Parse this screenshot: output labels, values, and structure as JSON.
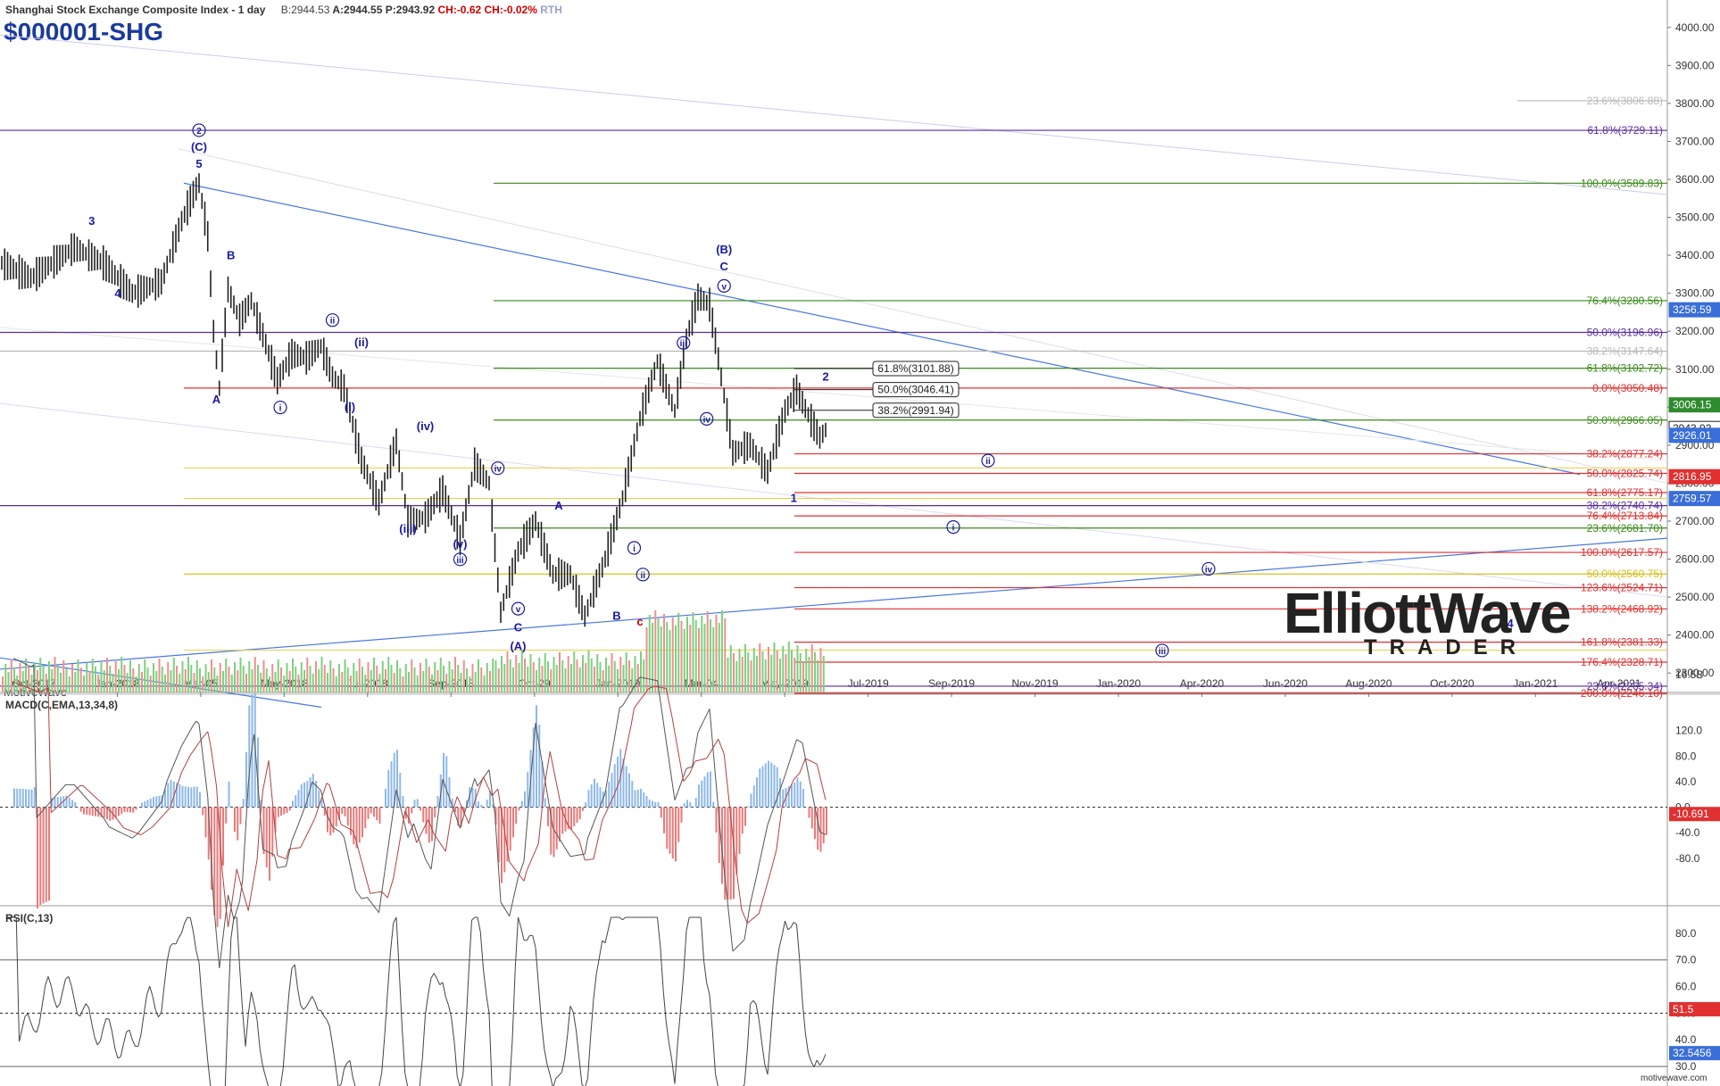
{
  "header": {
    "title": "Shanghai Stock Exchange Composite Index - 1 day",
    "bid": "B:2944.53",
    "ask": "A:2944.55",
    "price": "P:2943.92",
    "change": "CH:-0.62",
    "change_pct": "CH:-0.02%",
    "session": "RTH",
    "symbol": "$000001-SHG"
  },
  "branding": {
    "app": "MotiveWave",
    "footer": "motivewave.com",
    "logo_main": "ElliottWave",
    "logo_sub": "TRADER"
  },
  "colors": {
    "up_bar": "#222222",
    "trend": "#4a78e0",
    "fib_green": "#2e8b2e",
    "fib_red": "#e03030",
    "fib_yellow": "#e8d040",
    "fib_purple": "#4a2a90",
    "wave_label": "#1a1aa0"
  },
  "chart_data": [
    {
      "type": "line",
      "title": "Shanghai Stock Exchange Composite Index - 1 day",
      "price_axis_ticks": [
        "4000.00",
        "3900.00",
        "3800.00",
        "3700.00",
        "3600.00",
        "3500.00",
        "3400.00",
        "3300.00",
        "3200.00",
        "3100.00",
        "3000.00",
        "2900.00",
        "2800.00",
        "2700.00",
        "2600.00",
        "2500.00",
        "2400.00",
        "2300.00"
      ],
      "ylim": [
        2230,
        4030
      ],
      "time_axis_ticks": [
        "Oct-2017",
        "Jan-2018",
        "Mar-05",
        "May-2018",
        "Jul-2018",
        "Sep-2018",
        "Oct-29",
        "Jan-2019",
        "Mar-04",
        "May-2019",
        "Jul-2019",
        "Sep-2019",
        "Nov-2019",
        "Jan-2020",
        "Apr-2020",
        "Jun-2020",
        "Aug-2020",
        "Oct-2020",
        "Jan-2021",
        "Apr-2021"
      ],
      "price_path": [
        [
          0,
          3380
        ],
        [
          10,
          3340
        ],
        [
          25,
          3420
        ],
        [
          35,
          3380
        ],
        [
          45,
          3300
        ],
        [
          55,
          3330
        ],
        [
          62,
          3490
        ],
        [
          66,
          3560
        ],
        [
          68,
          3590
        ],
        [
          71,
          3450
        ],
        [
          73,
          3200
        ],
        [
          75,
          3050
        ],
        [
          78,
          3310
        ],
        [
          82,
          3230
        ],
        [
          86,
          3280
        ],
        [
          90,
          3190
        ],
        [
          95,
          3070
        ],
        [
          100,
          3140
        ],
        [
          105,
          3130
        ],
        [
          110,
          3160
        ],
        [
          114,
          3080
        ],
        [
          118,
          3050
        ],
        [
          124,
          2860
        ],
        [
          130,
          2750
        ],
        [
          136,
          2910
        ],
        [
          140,
          2700
        ],
        [
          146,
          2710
        ],
        [
          152,
          2780
        ],
        [
          158,
          2650
        ],
        [
          163,
          2850
        ],
        [
          168,
          2800
        ],
        [
          172,
          2460
        ],
        [
          178,
          2620
        ],
        [
          184,
          2700
        ],
        [
          190,
          2560
        ],
        [
          196,
          2560
        ],
        [
          201,
          2450
        ],
        [
          208,
          2600
        ],
        [
          214,
          2760
        ],
        [
          220,
          2970
        ],
        [
          226,
          3120
        ],
        [
          232,
          2990
        ],
        [
          236,
          3180
        ],
        [
          240,
          3290
        ],
        [
          244,
          3270
        ],
        [
          248,
          3080
        ],
        [
          252,
          2880
        ],
        [
          258,
          2900
        ],
        [
          264,
          2830
        ],
        [
          270,
          2990
        ],
        [
          274,
          3046
        ],
        [
          278,
          2980
        ],
        [
          282,
          2920
        ],
        [
          284,
          2940
        ]
      ],
      "volume_axis_ticks": [
        "16.5B"
      ],
      "fib_levels": [
        {
          "label": "23.6%(3806.88)",
          "value": 3806.88,
          "color": "#b8b8b8"
        },
        {
          "label": "61.8%(3729.11)",
          "value": 3729.11,
          "color": "#5b2d9c"
        },
        {
          "label": "100.0%(3589.83)",
          "value": 3589.83,
          "color": "#3a8a1a"
        },
        {
          "label": "76.4%(3280.56)",
          "value": 3280.56,
          "color": "#3a8a1a"
        },
        {
          "label": "50.0%(3196.96)",
          "value": 3196.96,
          "color": "#5b2d9c"
        },
        {
          "label": "38.2%(3147.64)",
          "value": 3147.64,
          "color": "#b8b8b8"
        },
        {
          "label": "61.8%(3102.72)",
          "value": 3102.72,
          "color": "#3a8a1a"
        },
        {
          "label": "0.0%(3050.48)",
          "value": 3050.48,
          "color": "#e03030"
        },
        {
          "label": "50.0%(2966.05)",
          "value": 2966.05,
          "color": "#3a8a1a"
        },
        {
          "label": "38.2%(2877.24)",
          "value": 2877.24,
          "color": "#e03030"
        },
        {
          "label": "50.0%(2825.74)",
          "value": 2825.74,
          "color": "#e03030"
        },
        {
          "label": "61.8%(2775.17)",
          "value": 2775.17,
          "color": "#e03030"
        },
        {
          "label": "38.2%(2740.74)",
          "value": 2740.74,
          "color": "#5b2d9c"
        },
        {
          "label": "76.4%(2713.84)",
          "value": 2713.84,
          "color": "#e03030"
        },
        {
          "label": "23.6%(2681.70)",
          "value": 2681.7,
          "color": "#3a8a1a"
        },
        {
          "label": "100.0%(2617.57)",
          "value": 2617.57,
          "color": "#e03030"
        },
        {
          "label": "50.0%(2560.75)",
          "value": 2560.75,
          "color": "#d8c020"
        },
        {
          "label": "123.6%(2524.71)",
          "value": 2524.71,
          "color": "#e03030"
        },
        {
          "label": "138.2%(2468.92)",
          "value": 2468.92,
          "color": "#e03030"
        },
        {
          "label": "161.8%(2381.33)",
          "value": 2381.33,
          "color": "#e03030"
        },
        {
          "label": "176.4%(2328.71)",
          "value": 2328.71,
          "color": "#e03030"
        },
        {
          "label": "23.6%(2265.34)",
          "value": 2265.34,
          "color": "#5b2d9c"
        },
        {
          "label": "200.0%(2246.10)",
          "value": 2246.1,
          "color": "#e03030"
        }
      ],
      "boxed_labels": [
        {
          "label": "61.8%(3101.88)",
          "value": 3101.88
        },
        {
          "label": "50.0%(3046.41)",
          "value": 3046.41
        },
        {
          "label": "38.2%(2991.94)",
          "value": 2991.94
        }
      ],
      "price_tags": [
        {
          "label": "3256.59",
          "value": 3256.59,
          "color": "#3a6ed8"
        },
        {
          "label": "3006.15",
          "value": 3006.15,
          "color": "#2e8b2e"
        },
        {
          "label": "2943.92",
          "value": 2943.92,
          "color": "#ffffff"
        },
        {
          "label": "2926.01",
          "value": 2926.01,
          "color": "#3a6ed8"
        },
        {
          "label": "2816.95",
          "value": 2816.95,
          "color": "#e03030"
        },
        {
          "label": "2759.57",
          "value": 2759.57,
          "color": "#3a6ed8"
        }
      ],
      "wave_labels": [
        {
          "text": "2",
          "x": 68,
          "y": 3720,
          "circled": true
        },
        {
          "text": "(C)",
          "x": 68,
          "y": 3675
        },
        {
          "text": "5",
          "x": 68,
          "y": 3630
        },
        {
          "text": "3",
          "x": 31,
          "y": 3480
        },
        {
          "text": "4",
          "x": 40,
          "y": 3290
        },
        {
          "text": "B",
          "x": 79,
          "y": 3390
        },
        {
          "text": "A",
          "x": 74,
          "y": 3010
        },
        {
          "text": "i",
          "x": 96,
          "y": 2990,
          "circled": true
        },
        {
          "text": "ii",
          "x": 114,
          "y": 3220,
          "circled": true
        },
        {
          "text": "(i)",
          "x": 120,
          "y": 2990
        },
        {
          "text": "(ii)",
          "x": 124,
          "y": 3160
        },
        {
          "text": "(iii)",
          "x": 140,
          "y": 2670
        },
        {
          "text": "(iv)",
          "x": 146,
          "y": 2940
        },
        {
          "text": "(v)",
          "x": 158,
          "y": 2630
        },
        {
          "text": "iii",
          "x": 158,
          "y": 2590,
          "circled": true
        },
        {
          "text": "iv",
          "x": 171,
          "y": 2830,
          "circled": true
        },
        {
          "text": "v",
          "x": 178,
          "y": 2460,
          "circled": true
        },
        {
          "text": "C",
          "x": 178,
          "y": 2410
        },
        {
          "text": "(A)",
          "x": 178,
          "y": 2360
        },
        {
          "text": "A",
          "x": 192,
          "y": 2730
        },
        {
          "text": "B",
          "x": 212,
          "y": 2440
        },
        {
          "text": "c",
          "x": 220,
          "y": 2425,
          "color": "#cc0000"
        },
        {
          "text": "i",
          "x": 218,
          "y": 2620,
          "circled": true
        },
        {
          "text": "ii",
          "x": 221,
          "y": 2550,
          "circled": true
        },
        {
          "text": "iii",
          "x": 235,
          "y": 3160,
          "circled": true
        },
        {
          "text": "iv",
          "x": 243,
          "y": 2960,
          "circled": true
        },
        {
          "text": "v",
          "x": 249,
          "y": 3310,
          "circled": true
        },
        {
          "text": "C",
          "x": 249,
          "y": 3360
        },
        {
          "text": "(B)",
          "x": 249,
          "y": 3405
        },
        {
          "text": "1",
          "x": 273,
          "y": 2750
        },
        {
          "text": "2",
          "x": 284,
          "y": 3070
        },
        {
          "text": "ii",
          "x": 340,
          "y": 2850,
          "circled": true
        },
        {
          "text": "i",
          "x": 328,
          "y": 2675,
          "circled": true
        },
        {
          "text": "iv",
          "x": 416,
          "y": 2565,
          "circled": true
        },
        {
          "text": "iii",
          "x": 400,
          "y": 2350,
          "circled": true
        },
        {
          "text": "4",
          "x": 520,
          "y": 2420
        }
      ]
    },
    {
      "type": "line",
      "title": "MACD(C,EMA,13,34,8)",
      "y_ticks": [
        "120.0",
        "80.0",
        "40.0",
        "0.0",
        "-40.0",
        "-80.0"
      ],
      "ylim": [
        -150,
        160
      ],
      "current_value": "-10.691"
    },
    {
      "type": "line",
      "title": "RSI(C,13)",
      "y_ticks": [
        "80.0",
        "70.0",
        "60.0",
        "50.0",
        "40.0",
        "30.0"
      ],
      "ylim": [
        25,
        86
      ],
      "current_value": "51.5",
      "secondary_value": "32.5456",
      "levels": [
        70,
        50,
        30
      ]
    }
  ]
}
